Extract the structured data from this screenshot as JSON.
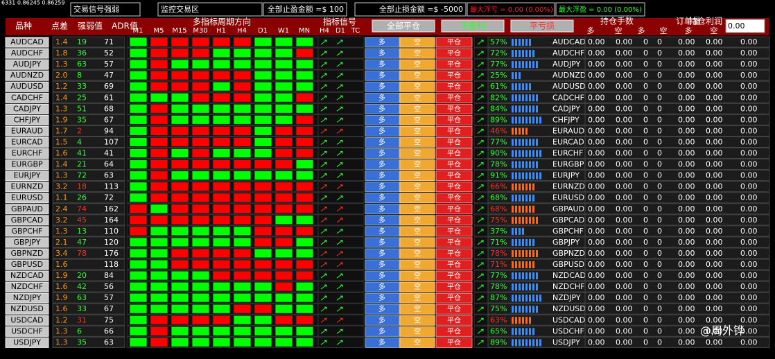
{
  "status": "6331 0.86245 0.86259",
  "top": {
    "signal": "交易信号强弱",
    "monitor": "监控交易区",
    "take_profit": "全部止盈金额 =$ 100",
    "stop_loss": "全部止损金额 =$ -5000",
    "max_loss": "最大浮亏 = 0.00 (0.00%)",
    "max_profit": "最大浮盈 = 0.00 (0.00%)"
  },
  "header": {
    "symbol": "品种",
    "spread": "点差",
    "strength": "强弱值",
    "adr": "ADR值",
    "periods_title": "多指标周期方向",
    "periods": [
      "M1",
      "M5",
      "M15",
      "M30",
      "H1",
      "H4",
      "D1",
      "W1",
      "MN"
    ],
    "signals_title": "指标信号",
    "signals": [
      "H4",
      "D1",
      "TC"
    ],
    "close_all": "全部平仓",
    "close_profit": "平盈利",
    "close_loss": "平亏损",
    "lots": "持仓手数",
    "orders": "订单量",
    "profit": "持仓利润",
    "long": "多",
    "short": "空",
    "input": "0.00"
  },
  "buttons": {
    "long": "多",
    "short": "空",
    "close": "平仓"
  },
  "rows": [
    {
      "symbol": "AUDCAD",
      "spread": "1.4",
      "strength": "19",
      "adr": "71",
      "periods": "GRRRRRGGG",
      "up": true,
      "percent": "57%"
    },
    {
      "symbol": "AUDCHF",
      "spread": "1.8",
      "strength": "36",
      "adr": "52",
      "periods": "GRRRGGGGR",
      "up": true,
      "percent": "72%"
    },
    {
      "symbol": "AUDJPY",
      "spread": "1.3",
      "strength": "63",
      "adr": "57",
      "periods": "GRGGGGGGG",
      "up": true,
      "percent": "77%"
    },
    {
      "symbol": "AUDNZD",
      "spread": "2.0",
      "strength": "8",
      "adr": "47",
      "periods": "GRRRRRGGG",
      "up": true,
      "percent": "25%"
    },
    {
      "symbol": "AUDUSD",
      "spread": "1.2",
      "strength": "33",
      "adr": "69",
      "periods": "GRRRGRGGG",
      "up": true,
      "percent": "61%"
    },
    {
      "symbol": "CADCHF",
      "spread": "1.4",
      "strength": "25",
      "adr": "61",
      "periods": "GGGRRRGGR",
      "up": true,
      "percent": "82%"
    },
    {
      "symbol": "CADJPY",
      "spread": "1.3",
      "strength": "51",
      "adr": "68",
      "periods": "GRGGGGGGG",
      "up": true,
      "percent": "84%"
    },
    {
      "symbol": "CHFJPY",
      "spread": "1.9",
      "strength": "35",
      "adr": "67",
      "periods": "GRGGGGGGR",
      "up": true,
      "percent": "89%"
    },
    {
      "symbol": "EURAUD",
      "spread": "1.7",
      "strength": "2",
      "adr": "94",
      "periods": "GRRRRRGRR",
      "up": false,
      "percent": "46%"
    },
    {
      "symbol": "EURCAD",
      "spread": "1.5",
      "strength": "4",
      "adr": "107",
      "periods": "GRRRRRGRR",
      "up": true,
      "percent": "77%"
    },
    {
      "symbol": "EURCHF",
      "spread": "1.6",
      "strength": "41",
      "adr": "41",
      "periods": "GRGRGGGRR",
      "up": true,
      "percent": "90%"
    },
    {
      "symbol": "EURGBP",
      "spread": "1.4",
      "strength": "21",
      "adr": "64",
      "periods": "GRRRRRRRG",
      "up": true,
      "percent": "78%"
    },
    {
      "symbol": "EURJPY",
      "spread": "1.3",
      "strength": "72",
      "adr": "63",
      "periods": "GRGGGGGGG",
      "up": true,
      "percent": "91%"
    },
    {
      "symbol": "EURNZD",
      "spread": "3.2",
      "strength": "18",
      "adr": "113",
      "periods": "GRRRRRRRR",
      "up": false,
      "percent": "66%"
    },
    {
      "symbol": "EURUSD",
      "spread": "1.1",
      "strength": "26",
      "adr": "72",
      "periods": "GRRRRRRRR",
      "up": true,
      "percent": "68%"
    },
    {
      "symbol": "GBPAUD",
      "spread": "2.4",
      "strength": "74",
      "adr": "162",
      "periods": "RGRRRRRRR",
      "up": false,
      "percent": "68%"
    },
    {
      "symbol": "GBPCAD",
      "spread": "3.2",
      "strength": "45",
      "adr": "164",
      "periods": "RRRRRRRGG",
      "up": false,
      "percent": "75%"
    },
    {
      "symbol": "GBPCHF",
      "spread": "1.3",
      "strength": "13",
      "adr": "110",
      "periods": "RGGGGGRRR",
      "up": true,
      "percent": "37%"
    },
    {
      "symbol": "GBPJPY",
      "spread": "2.1",
      "strength": "47",
      "adr": "120",
      "periods": "GGGGGGRRG",
      "up": true,
      "percent": "71%"
    },
    {
      "symbol": "GBPNZD",
      "spread": "3.4",
      "strength": "78",
      "adr": "176",
      "periods": "GGRRRRGGG",
      "up": false,
      "percent": "78%"
    },
    {
      "symbol": "GBPUSD",
      "spread": "1.6",
      "strength": null,
      "adr": "118",
      "periods": "GGRRRRRRR",
      "up": false,
      "percent": "71%"
    },
    {
      "symbol": "NZDCAD",
      "spread": "1.9",
      "strength": "20",
      "adr": "84",
      "periods": "GGGGRRRRR",
      "up": true,
      "percent": "77%"
    },
    {
      "symbol": "NZDCHF",
      "spread": "1.6",
      "strength": "42",
      "adr": "56",
      "periods": "GGGGGGGRG",
      "up": true,
      "percent": "78%"
    },
    {
      "symbol": "NZDJPY",
      "spread": "1.9",
      "strength": "63",
      "adr": "57",
      "periods": "GGGGGGGGG",
      "up": true,
      "percent": "87%"
    },
    {
      "symbol": "NZDUSD",
      "spread": "1.6",
      "strength": "33",
      "adr": "67",
      "periods": "GGGGGRRGG",
      "up": true,
      "percent": "75%"
    },
    {
      "symbol": "USDCAD",
      "spread": "1.2",
      "strength": "31",
      "adr": "75",
      "periods": "GRRRRGGRR",
      "up": false,
      "percent": "63%"
    },
    {
      "symbol": "USDCHF",
      "spread": "1.3",
      "strength": "6",
      "adr": "66",
      "periods": "GRGGGGGGG",
      "up": true,
      "percent": "65%"
    },
    {
      "symbol": "USDJPY",
      "spread": "1.3",
      "strength": "35",
      "adr": "63",
      "periods": "GRGGGGGGG",
      "up": true,
      "percent": "89%"
    }
  ],
  "cells": [
    "0.00",
    "0.00",
    "0",
    "0",
    "0.00",
    "0.00",
    "0.00"
  ],
  "watermark": "@周外铧"
}
